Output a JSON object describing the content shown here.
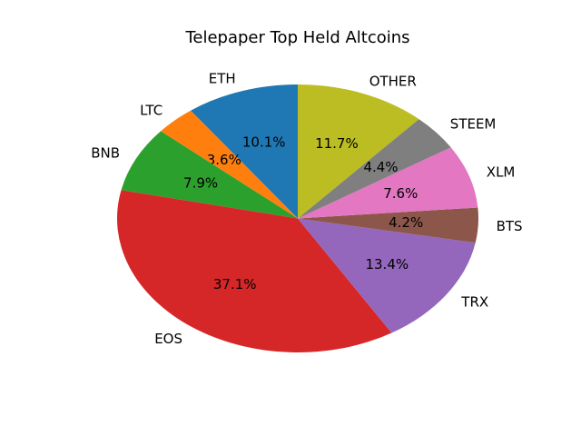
{
  "title_bar": {
    "app_title": "Telepaper Top Held Altcoins"
  },
  "chart_data": {
    "type": "pie",
    "title": "Telepaper Top Held Altcoins",
    "labels": [
      "ETH",
      "LTC",
      "BNB",
      "EOS",
      "TRX",
      "BTS",
      "XLM",
      "STEEM",
      "OTHER"
    ],
    "values": [
      10.1,
      3.6,
      7.9,
      37.1,
      13.4,
      4.2,
      7.6,
      4.4,
      11.7
    ],
    "pct_labels": [
      "10.1%",
      "3.6%",
      "7.9%",
      "37.1%",
      "13.4%",
      "4.2%",
      "7.6%",
      "4.4%",
      "11.7%"
    ],
    "colors": [
      "#1f77b4",
      "#ff7f0e",
      "#2ca02c",
      "#d62728",
      "#9467bd",
      "#8c564b",
      "#e377c2",
      "#7f7f7f",
      "#bcbd22"
    ],
    "start_angle": 90,
    "counterclock": true,
    "label_distance": 1.1,
    "pct_distance": 0.6,
    "background_color": "#ffffff",
    "text_color": "#000000",
    "legend": "none",
    "grid": false
  }
}
